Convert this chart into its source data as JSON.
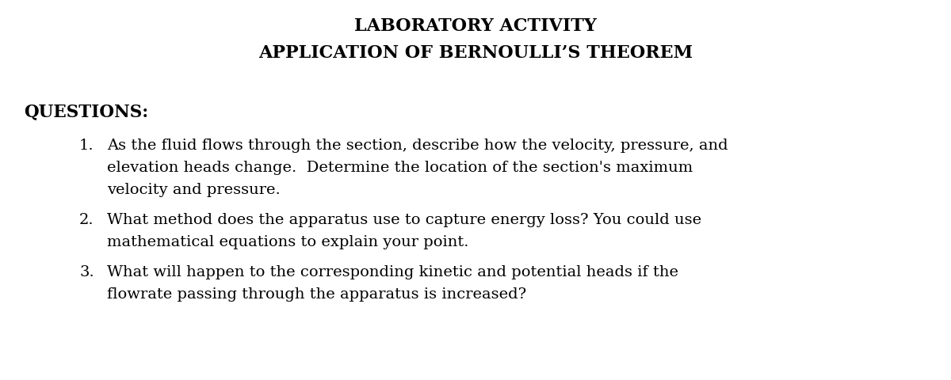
{
  "title_line1": "LABORATORY ACTIVITY",
  "title_line2": "APPLICATION OF BERNOULLI’S THEOREM",
  "section_header": "QUESTIONS:",
  "q1_num": "1.",
  "q1_line1": "As the fluid flows through the section, describe how the velocity, pressure, and",
  "q1_line2": "elevation heads change.  Determine the location of the section's maximum",
  "q1_line3": "velocity and pressure.",
  "q2_num": "2.",
  "q2_line1": "What method does the apparatus use to capture energy loss? You could use",
  "q2_line2": "mathematical equations to explain your point.",
  "q3_num": "3.",
  "q3_line1": "What will happen to the corresponding kinetic and potential heads if the",
  "q3_line2": "flowrate passing through the apparatus is increased?",
  "bg_color": "#ffffff",
  "text_color": "#000000",
  "title_fontsize": 16,
  "header_fontsize": 15.5,
  "body_fontsize": 14,
  "fig_width": 12.0,
  "fig_height": 4.81
}
